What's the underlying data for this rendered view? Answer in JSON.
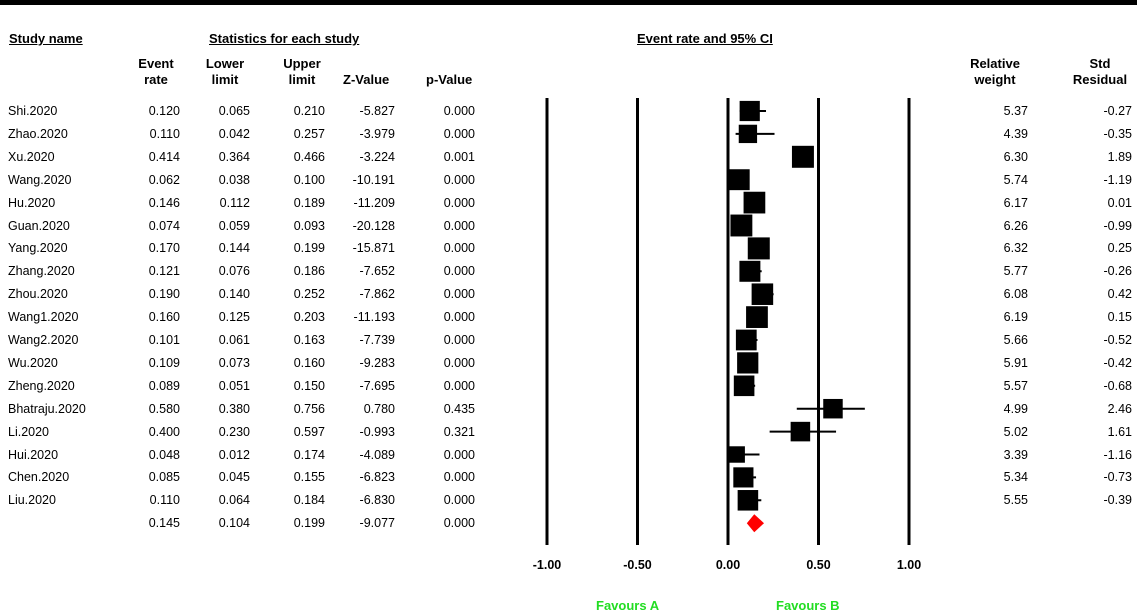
{
  "headers": {
    "study_name": "Study name",
    "stats": "Statistics for each study",
    "plot": "Event rate and 95% CI"
  },
  "columns": {
    "event_rate": [
      "Event",
      "rate"
    ],
    "lower_limit": [
      "Lower",
      "limit"
    ],
    "upper_limit": [
      "Upper",
      "limit"
    ],
    "z_value": "Z-Value",
    "p_value": "p-Value",
    "relative_weight": [
      "Relative",
      "weight"
    ],
    "std_residual": [
      "Std",
      "Residual"
    ]
  },
  "favours": {
    "a": "Favours A",
    "b": "Favours B"
  },
  "summary_color": "#ff0000",
  "marker_color": "#000000",
  "favour_color": "#22dd22",
  "chart_data": {
    "type": "forest",
    "title": "Event rate and 95% CI",
    "x_ticks": [
      "-1.00",
      "-0.50",
      "0.00",
      "0.50",
      "1.00"
    ],
    "x_tick_values": [
      -1.0,
      -0.5,
      0.0,
      0.5,
      1.0
    ],
    "xlim": [
      -1.0,
      1.0
    ],
    "studies": [
      {
        "name": "Shi.2020",
        "event_rate": "0.120",
        "lower": "0.065",
        "upper": "0.210",
        "z": "-5.827",
        "p": "0.000",
        "weight": "5.37",
        "resid": "-0.27"
      },
      {
        "name": "Zhao.2020",
        "event_rate": "0.110",
        "lower": "0.042",
        "upper": "0.257",
        "z": "-3.979",
        "p": "0.000",
        "weight": "4.39",
        "resid": "-0.35"
      },
      {
        "name": "Xu.2020",
        "event_rate": "0.414",
        "lower": "0.364",
        "upper": "0.466",
        "z": "-3.224",
        "p": "0.001",
        "weight": "6.30",
        "resid": "1.89"
      },
      {
        "name": "Wang.2020",
        "event_rate": "0.062",
        "lower": "0.038",
        "upper": "0.100",
        "z": "-10.191",
        "p": "0.000",
        "weight": "5.74",
        "resid": "-1.19"
      },
      {
        "name": "Hu.2020",
        "event_rate": "0.146",
        "lower": "0.112",
        "upper": "0.189",
        "z": "-11.209",
        "p": "0.000",
        "weight": "6.17",
        "resid": "0.01"
      },
      {
        "name": "Guan.2020",
        "event_rate": "0.074",
        "lower": "0.059",
        "upper": "0.093",
        "z": "-20.128",
        "p": "0.000",
        "weight": "6.26",
        "resid": "-0.99"
      },
      {
        "name": "Yang.2020",
        "event_rate": "0.170",
        "lower": "0.144",
        "upper": "0.199",
        "z": "-15.871",
        "p": "0.000",
        "weight": "6.32",
        "resid": "0.25"
      },
      {
        "name": "Zhang.2020",
        "event_rate": "0.121",
        "lower": "0.076",
        "upper": "0.186",
        "z": "-7.652",
        "p": "0.000",
        "weight": "5.77",
        "resid": "-0.26"
      },
      {
        "name": "Zhou.2020",
        "event_rate": "0.190",
        "lower": "0.140",
        "upper": "0.252",
        "z": "-7.862",
        "p": "0.000",
        "weight": "6.08",
        "resid": "0.42"
      },
      {
        "name": "Wang1.2020",
        "event_rate": "0.160",
        "lower": "0.125",
        "upper": "0.203",
        "z": "-11.193",
        "p": "0.000",
        "weight": "6.19",
        "resid": "0.15"
      },
      {
        "name": "Wang2.2020",
        "event_rate": "0.101",
        "lower": "0.061",
        "upper": "0.163",
        "z": "-7.739",
        "p": "0.000",
        "weight": "5.66",
        "resid": "-0.52"
      },
      {
        "name": "Wu.2020",
        "event_rate": "0.109",
        "lower": "0.073",
        "upper": "0.160",
        "z": "-9.283",
        "p": "0.000",
        "weight": "5.91",
        "resid": "-0.42"
      },
      {
        "name": "Zheng.2020",
        "event_rate": "0.089",
        "lower": "0.051",
        "upper": "0.150",
        "z": "-7.695",
        "p": "0.000",
        "weight": "5.57",
        "resid": "-0.68"
      },
      {
        "name": "Bhatraju.2020",
        "event_rate": "0.580",
        "lower": "0.380",
        "upper": "0.756",
        "z": "0.780",
        "p": "0.435",
        "weight": "4.99",
        "resid": "2.46"
      },
      {
        "name": "Li.2020",
        "event_rate": "0.400",
        "lower": "0.230",
        "upper": "0.597",
        "z": "-0.993",
        "p": "0.321",
        "weight": "5.02",
        "resid": "1.61"
      },
      {
        "name": "Hui.2020",
        "event_rate": "0.048",
        "lower": "0.012",
        "upper": "0.174",
        "z": "-4.089",
        "p": "0.000",
        "weight": "3.39",
        "resid": "-1.16"
      },
      {
        "name": "Chen.2020",
        "event_rate": "0.085",
        "lower": "0.045",
        "upper": "0.155",
        "z": "-6.823",
        "p": "0.000",
        "weight": "5.34",
        "resid": "-0.73"
      },
      {
        "name": "Liu.2020",
        "event_rate": "0.110",
        "lower": "0.064",
        "upper": "0.184",
        "z": "-6.830",
        "p": "0.000",
        "weight": "5.55",
        "resid": "-0.39"
      }
    ],
    "summary": {
      "name": "",
      "event_rate": "0.145",
      "lower": "0.104",
      "upper": "0.199",
      "z": "-9.077",
      "p": "0.000"
    }
  }
}
